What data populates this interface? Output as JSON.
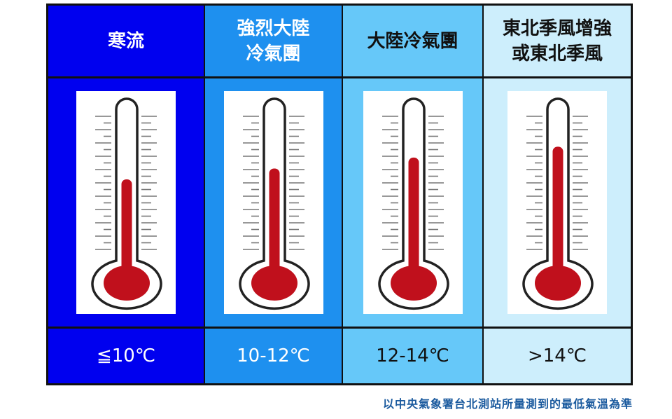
{
  "columns": [
    {
      "header": "寒流",
      "range": "≦10℃",
      "bg": "#0000ef",
      "text_color": "#ffffff",
      "fill_level": 0.5
    },
    {
      "header": "強烈大陸\n冷氣團",
      "range": "10-12℃",
      "bg": "#1e90ef",
      "text_color": "#ffffff",
      "fill_level": 0.57
    },
    {
      "header": "大陸冷氣團",
      "range": "12-14℃",
      "bg": "#66c8f9",
      "text_color": "#111111",
      "fill_level": 0.64
    },
    {
      "header": "東北季風增強\n或東北季風",
      "range": ">14℃",
      "bg": "#cdeefc",
      "text_color": "#111111",
      "fill_level": 0.71
    }
  ],
  "thermometer_icon": "thermometer-icon",
  "mercury_color": "#c0101c",
  "footnote": "以中央氣象署台北測站所量測到的最低氣溫為準"
}
